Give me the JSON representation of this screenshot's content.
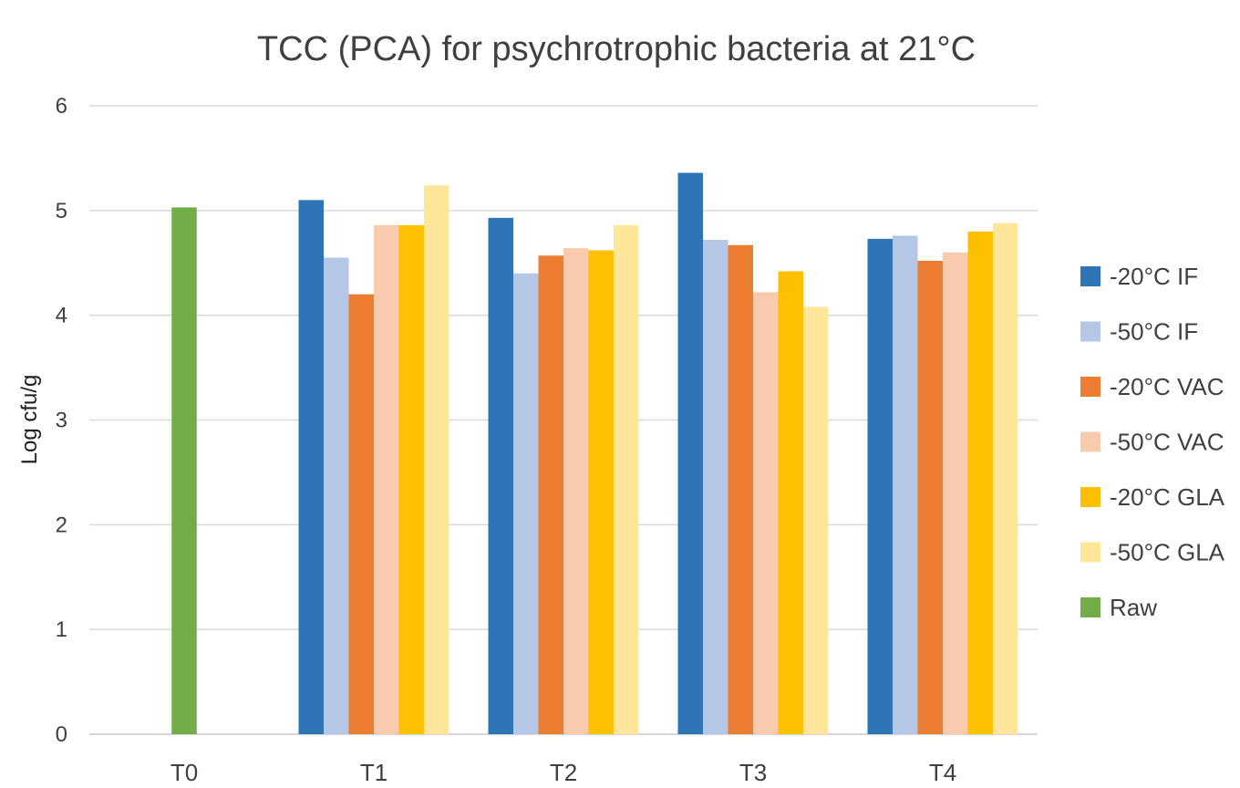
{
  "chart_data": {
    "type": "bar",
    "title": "TCC (PCA) for psychrotrophic bacteria at 21°C",
    "xlabel": "",
    "ylabel": "Log cfu/g",
    "ylim": [
      0,
      6
    ],
    "yticks": [
      0,
      1,
      2,
      3,
      4,
      5,
      6
    ],
    "grid": true,
    "legend_position": "right",
    "categories": [
      "T0",
      "T1",
      "T2",
      "T3",
      "T4"
    ],
    "series": [
      {
        "name": "-20°C IF",
        "color": "#2E75B6",
        "values": [
          null,
          5.1,
          4.93,
          5.36,
          4.73
        ]
      },
      {
        "name": "-50°C IF",
        "color": "#B4C7E7",
        "values": [
          null,
          4.55,
          4.4,
          4.72,
          4.76
        ]
      },
      {
        "name": "-20°C VAC",
        "color": "#ED7D31",
        "values": [
          null,
          4.2,
          4.57,
          4.67,
          4.52
        ]
      },
      {
        "name": "-50°C VAC",
        "color": "#F8CBAD",
        "values": [
          null,
          4.86,
          4.64,
          4.22,
          4.6
        ]
      },
      {
        "name": "-20°C GLA",
        "color": "#FFC000",
        "values": [
          null,
          4.86,
          4.62,
          4.42,
          4.8
        ]
      },
      {
        "name": "-50°C GLA",
        "color": "#FFE699",
        "values": [
          null,
          5.24,
          4.86,
          4.08,
          4.88
        ]
      },
      {
        "name": "Raw",
        "color": "#70AD47",
        "values": [
          5.03,
          null,
          null,
          null,
          null
        ]
      }
    ]
  }
}
